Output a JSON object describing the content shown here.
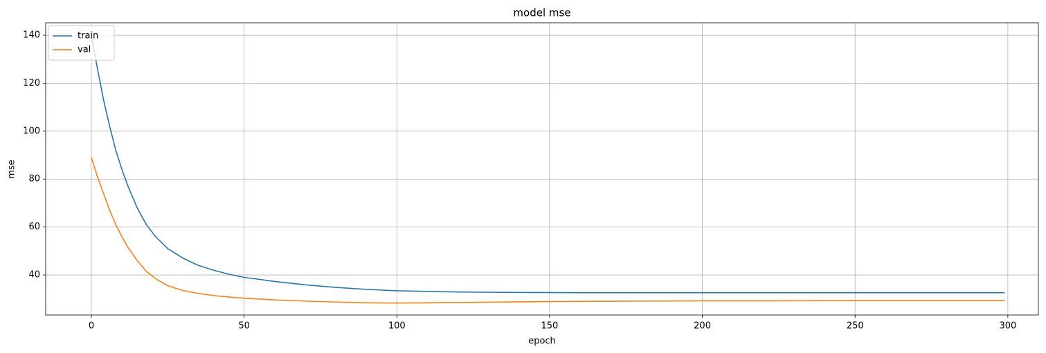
{
  "chart_data": {
    "type": "line",
    "title": "model mse",
    "x_label": "epoch",
    "y_label": "mse",
    "x": [
      0,
      2,
      4,
      6,
      8,
      10,
      12,
      15,
      18,
      21,
      25,
      30,
      35,
      40,
      45,
      50,
      60,
      70,
      80,
      90,
      100,
      120,
      140,
      160,
      180,
      200,
      225,
      250,
      275,
      299
    ],
    "series": [
      {
        "name": "train",
        "color": "#1f77b4",
        "values": [
          140,
          126,
          113,
          102,
          92,
          84,
          77,
          68,
          61,
          56,
          51,
          47,
          44,
          42,
          40.3,
          39,
          37.3,
          35.9,
          34.8,
          34,
          33.4,
          32.9,
          32.7,
          32.6,
          32.6,
          32.6,
          32.6,
          32.6,
          32.6,
          32.6
        ]
      },
      {
        "name": "val",
        "color": "#ff7f0e",
        "values": [
          89,
          81,
          74,
          67,
          61,
          56,
          51.5,
          46,
          41.5,
          38.5,
          35.5,
          33.5,
          32.3,
          31.4,
          30.8,
          30.3,
          29.6,
          29.1,
          28.7,
          28.4,
          28.3,
          28.5,
          28.8,
          29,
          29.1,
          29.2,
          29.2,
          29.3,
          29.3,
          29.3
        ]
      }
    ],
    "xlim": [
      -14.95,
      310
    ],
    "ylim": [
      23.3,
      145.2
    ],
    "xticks": [
      0,
      50,
      100,
      150,
      200,
      250,
      300
    ],
    "yticks": [
      40,
      60,
      80,
      100,
      120,
      140
    ],
    "grid": true,
    "legend": "upper left"
  }
}
